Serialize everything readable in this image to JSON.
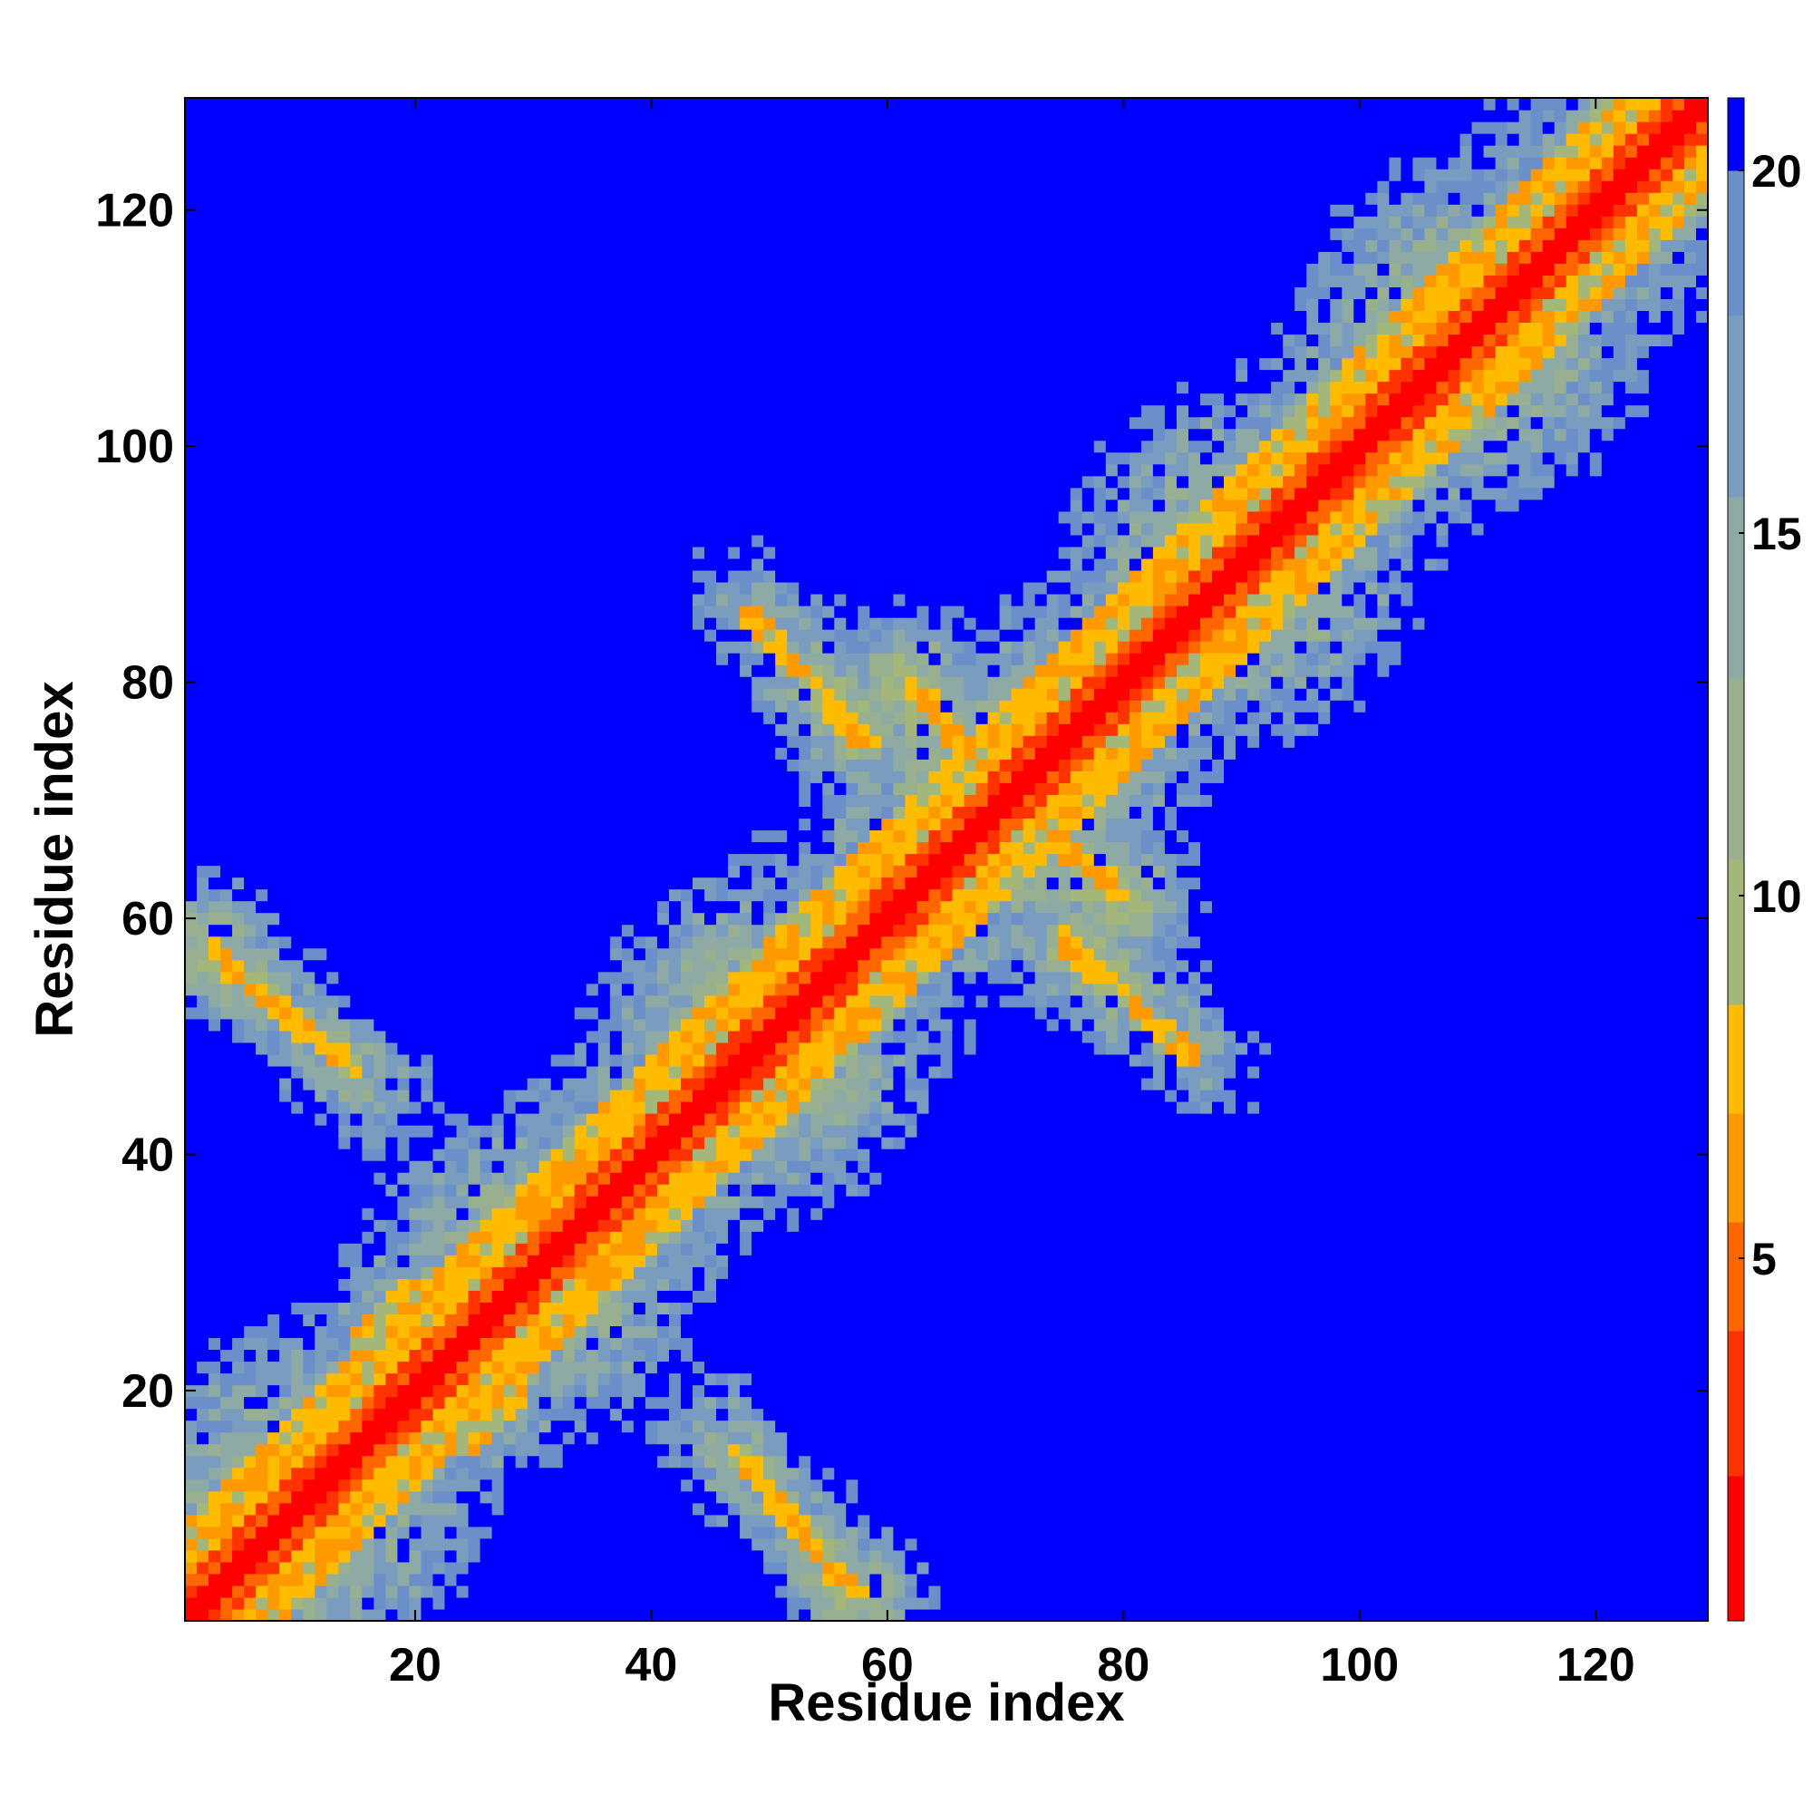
{
  "chart_data": {
    "type": "heatmap",
    "title": "",
    "xlabel": "Residue index",
    "ylabel": "Residue index",
    "n_residues": 129,
    "xlim": [
      0.5,
      129.5
    ],
    "ylim": [
      0.5,
      129.5
    ],
    "x_ticks": [
      20,
      40,
      60,
      80,
      100,
      120
    ],
    "y_ticks": [
      20,
      40,
      60,
      80,
      100,
      120
    ],
    "colorbar": {
      "range": [
        0,
        21
      ],
      "ticks": [
        5,
        10,
        15,
        20
      ],
      "palette": [
        {
          "max": 2,
          "color": "#ff0000"
        },
        {
          "max": 4,
          "color": "#ff3300"
        },
        {
          "max": 5.5,
          "color": "#ff6600"
        },
        {
          "max": 7,
          "color": "#ff9900"
        },
        {
          "max": 8.5,
          "color": "#ffbb00"
        },
        {
          "max": 10.5,
          "color": "#a3b77a"
        },
        {
          "max": 13,
          "color": "#98b08f"
        },
        {
          "max": 15.5,
          "color": "#8eaaa5"
        },
        {
          "max": 18,
          "color": "#7a9cbf"
        },
        {
          "max": 20,
          "color": "#6b8fc8"
        },
        {
          "max": 21,
          "color": "#0000ff"
        }
      ]
    },
    "features": {
      "diagonal": "i = j",
      "antiparallel_contacts": [
        {
          "i_range": [
            3,
            15
          ],
          "j_range": [
            47,
            57
          ]
        },
        {
          "i_range": [
            47,
            57
          ],
          "j_range": [
            3,
            15
          ]
        },
        {
          "i_range": [
            48,
            58
          ],
          "j_range": [
            75,
            86
          ]
        },
        {
          "i_range": [
            75,
            86
          ],
          "j_range": [
            48,
            58
          ]
        },
        {
          "i_range": [
            62,
            70
          ],
          "j_range": [
            70,
            80
          ]
        },
        {
          "i_range": [
            70,
            80
          ],
          "j_range": [
            62,
            70
          ]
        }
      ],
      "parallel_contacts": [
        {
          "i_range": [
            15,
            20
          ],
          "j_range": [
            24,
            29
          ]
        },
        {
          "i_range": [
            24,
            29
          ],
          "j_range": [
            15,
            20
          ]
        }
      ]
    }
  }
}
